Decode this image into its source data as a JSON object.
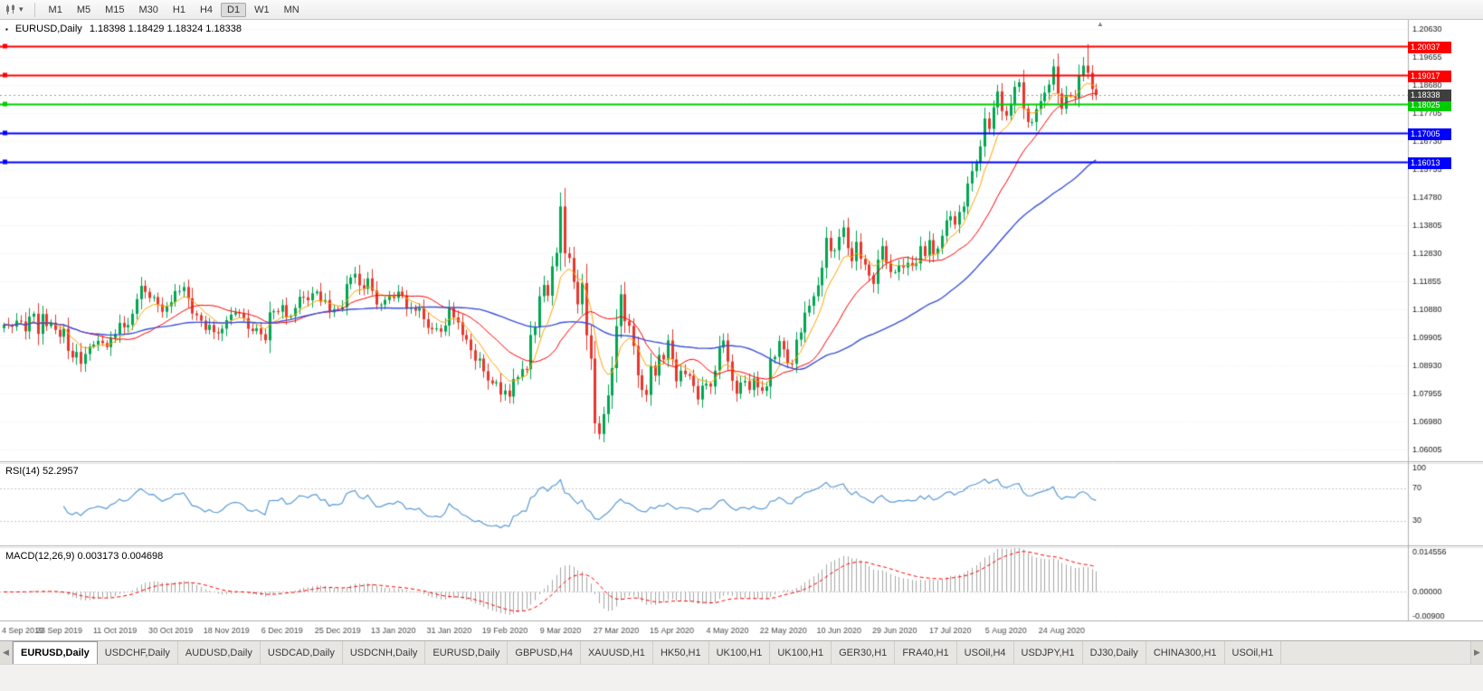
{
  "toolbar": {
    "timeframes": [
      "M1",
      "M5",
      "M15",
      "M30",
      "H1",
      "H4",
      "D1",
      "W1",
      "MN"
    ],
    "active_timeframe": "D1"
  },
  "icons": {
    "caret_down": "▾",
    "chart_marker": "▪",
    "chart_shift": "▲",
    "tab_scroll_left": "◀",
    "tab_scroll_right": "▶"
  },
  "chart": {
    "symbol": "EURUSD,Daily",
    "ohlc": "1.18398 1.18429 1.18324 1.18338",
    "bid": 1.18338,
    "bid_label": "1.18338"
  },
  "price_axis": {
    "max": 1.2095,
    "min": 1.056,
    "labels": [
      "1.20630",
      "1.19655",
      "1.18680",
      "1.17705",
      "1.16730",
      "1.15755",
      "1.14780",
      "1.13805",
      "1.12830",
      "1.11855",
      "1.10880",
      "1.09905",
      "1.08930",
      "1.07955",
      "1.06980",
      "1.06005"
    ]
  },
  "trend_lines": [
    {
      "value": 1.20037,
      "label": "1.20037",
      "color": "#ff0000"
    },
    {
      "value": 1.19017,
      "label": "1.19017",
      "color": "#ff0000"
    },
    {
      "value": 1.18025,
      "label": "1.18025",
      "color": "#00cc00"
    },
    {
      "value": 1.17005,
      "label": "1.17005",
      "color": "#0000ff"
    },
    {
      "value": 1.16013,
      "label": "1.16013",
      "color": "#0000ff"
    }
  ],
  "rsi": {
    "label": "RSI(14) 52.2957",
    "period": 14,
    "levels": [
      70,
      30
    ],
    "axis_labels": [
      "100",
      "70",
      "30"
    ]
  },
  "macd": {
    "label": "MACD(12,26,9) 0.003173 0.004698",
    "fast": 12,
    "slow": 26,
    "signal_period": 9,
    "max": 0.0146,
    "min": -0.0095,
    "axis_labels": [
      "0.014556",
      "0.00000",
      "-0.00900"
    ]
  },
  "date_axis": {
    "candles_per_label": 13,
    "labels": [
      "4 Sep 2019",
      "23 Sep 2019",
      "11 Oct 2019",
      "30 Oct 2019",
      "18 Nov 2019",
      "6 Dec 2019",
      "25 Dec 2019",
      "13 Jan 2020",
      "31 Jan 2020",
      "19 Feb 2020",
      "9 Mar 2020",
      "27 Mar 2020",
      "15 Apr 2020",
      "4 May 2020",
      "22 May 2020",
      "10 Jun 2020",
      "29 Jun 2020",
      "17 Jul 2020",
      "5 Aug 2020",
      "24 Aug 2020"
    ]
  },
  "colors": {
    "bull": "#00a651",
    "bear": "#e8362d",
    "ma_fast": "#ffa500",
    "ma_mid": "#ff0000",
    "ma_slow": "#3a50d9",
    "rsi": "#5b9bd5",
    "macd_hist": "#a6a6a6",
    "macd_signal": "#ff0000",
    "bid_badge": "#3f3f3f",
    "grid": "#ececec",
    "axis_text": "#1a1a1a",
    "panel_border": "#b0b0b0"
  },
  "chart_data": {
    "type": "candlestick",
    "symbol": "EURUSD",
    "timeframe": "Daily",
    "plot_data_width": 1212,
    "overlays": [
      {
        "name": "EMA(8)",
        "color_key": "ma_fast"
      },
      {
        "name": "SMA(20)",
        "color_key": "ma_mid"
      },
      {
        "name": "SMA(50)",
        "color_key": "ma_slow"
      }
    ],
    "wick_overrides": {
      "130": {
        "high": 1.1495
      },
      "138": {
        "low": 1.0656
      },
      "139": {
        "low": 1.0636
      },
      "252": {
        "high": 1.1966
      },
      "253": {
        "high": 1.2011
      }
    },
    "closes": [
      1.1035,
      1.1033,
      1.1028,
      1.1049,
      1.1046,
      1.1012,
      1.1063,
      1.1073,
      1.1003,
      1.1072,
      1.103,
      1.1042,
      1.1017,
      1.0993,
      1.1021,
      1.0944,
      1.0921,
      1.094,
      1.0899,
      1.0933,
      1.0959,
      1.0966,
      1.0979,
      1.0971,
      1.0957,
      1.0989,
      1.1003,
      1.1041,
      1.1026,
      1.1034,
      1.1073,
      1.1124,
      1.117,
      1.1149,
      1.1128,
      1.1131,
      1.1105,
      1.108,
      1.1099,
      1.1113,
      1.1152,
      1.1152,
      1.1166,
      1.1127,
      1.1074,
      1.1068,
      1.1049,
      1.1017,
      1.1034,
      1.1009,
      1.1005,
      1.1021,
      1.1051,
      1.107,
      1.1078,
      1.1074,
      1.1058,
      1.1021,
      1.1013,
      1.1022,
      1.1002,
      1.0981,
      1.1078,
      1.1082,
      1.108,
      1.1103,
      1.106,
      1.1065,
      1.1093,
      1.1132,
      1.113,
      1.112,
      1.1144,
      1.115,
      1.1115,
      1.1121,
      1.1078,
      1.1089,
      1.1087,
      1.1096,
      1.1176,
      1.1199,
      1.1212,
      1.1172,
      1.116,
      1.1196,
      1.1153,
      1.1105,
      1.1105,
      1.1121,
      1.1134,
      1.1128,
      1.115,
      1.1136,
      1.109,
      1.1095,
      1.1084,
      1.1093,
      1.1054,
      1.1024,
      1.1019,
      1.1022,
      1.1011,
      1.1032,
      1.1093,
      1.106,
      1.1043,
      1.0999,
      1.0983,
      1.0946,
      1.091,
      1.0917,
      1.0873,
      1.0841,
      1.0831,
      1.0835,
      1.0792,
      1.0806,
      1.0785,
      1.0846,
      1.0853,
      1.0881,
      1.088,
      1.0999,
      1.1026,
      1.1134,
      1.1173,
      1.1136,
      1.1238,
      1.1285,
      1.1446,
      1.1283,
      1.1267,
      1.1184,
      1.1106,
      1.118,
      1.0998,
      1.0917,
      1.0692,
      1.0655,
      1.0724,
      1.0789,
      1.0884,
      1.103,
      1.1141,
      1.1047,
      1.1031,
      1.0961,
      1.0859,
      1.0808,
      1.0791,
      1.0892,
      1.0858,
      1.093,
      1.0914,
      1.098,
      1.0914,
      1.0838,
      1.0875,
      1.0863,
      1.0857,
      1.0822,
      1.0775,
      1.0823,
      1.083,
      1.082,
      1.0875,
      1.0955,
      1.098,
      1.0907,
      1.084,
      1.0795,
      1.0834,
      1.0839,
      1.0808,
      1.0848,
      1.0817,
      1.0805,
      1.082,
      1.0915,
      1.0923,
      1.0978,
      1.0949,
      1.09,
      1.0899,
      1.0983,
      1.1008,
      1.1077,
      1.1101,
      1.1134,
      1.1172,
      1.1233,
      1.1337,
      1.1291,
      1.1294,
      1.134,
      1.1373,
      1.1301,
      1.1256,
      1.1323,
      1.1264,
      1.1244,
      1.1206,
      1.1177,
      1.1261,
      1.1308,
      1.125,
      1.1218,
      1.1218,
      1.1242,
      1.1234,
      1.125,
      1.1239,
      1.1248,
      1.1308,
      1.1274,
      1.1329,
      1.1281,
      1.13,
      1.1344,
      1.1398,
      1.1412,
      1.1383,
      1.1427,
      1.1446,
      1.1526,
      1.1569,
      1.1597,
      1.1655,
      1.1752,
      1.1716,
      1.1791,
      1.1846,
      1.1778,
      1.1762,
      1.1803,
      1.1862,
      1.1878,
      1.1786,
      1.174,
      1.174,
      1.1785,
      1.1812,
      1.1842,
      1.187,
      1.1933,
      1.1839,
      1.1786,
      1.1834,
      1.183,
      1.1824,
      1.1903,
      1.1936,
      1.1911,
      1.1854,
      1.18338
    ]
  },
  "tabbar": {
    "active_index": 0,
    "tabs": [
      "EURUSD,Daily",
      "USDCHF,Daily",
      "AUDUSD,Daily",
      "USDCAD,Daily",
      "USDCNH,Daily",
      "EURUSD,Daily",
      "GBPUSD,H4",
      "XAUUSD,H1",
      "HK50,H1",
      "UK100,H1",
      "UK100,H1",
      "GER30,H1",
      "FRA40,H1",
      "USOil,H4",
      "USDJPY,H1",
      "DJ30,Daily",
      "CHINA300,H1",
      "USOil,H1"
    ]
  }
}
